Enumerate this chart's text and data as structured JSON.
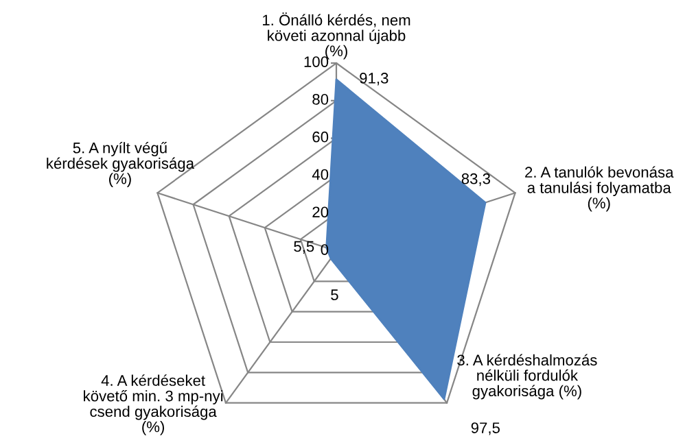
{
  "chart_data": {
    "type": "radar",
    "categories": [
      "1. Önálló kérdés, nem\nköveti azonnal újabb\n(%)",
      "2. A tanulók bevonása\na tanulási folyamatba\n(%)",
      "3. A kérdéshalmozás\nnélküli fordulók\ngyakorisága (%)",
      "4. A kérdéseket\nkövető min. 3 mp-nyi\ncsend gyakorisága\n(%)",
      "5. A nyílt végű\nkérdések gyakorisága\n(%)"
    ],
    "series": [
      {
        "color": "#4f81bd",
        "values": [
          91.3,
          83.3,
          97.5,
          5,
          5.5
        ],
        "value_labels": [
          "91,3",
          "83,3",
          "97,5",
          "5",
          "5,5"
        ]
      }
    ],
    "ylim": [
      0,
      100
    ],
    "yticks": [
      0,
      20,
      40,
      60,
      80,
      100
    ],
    "grid": true
  }
}
